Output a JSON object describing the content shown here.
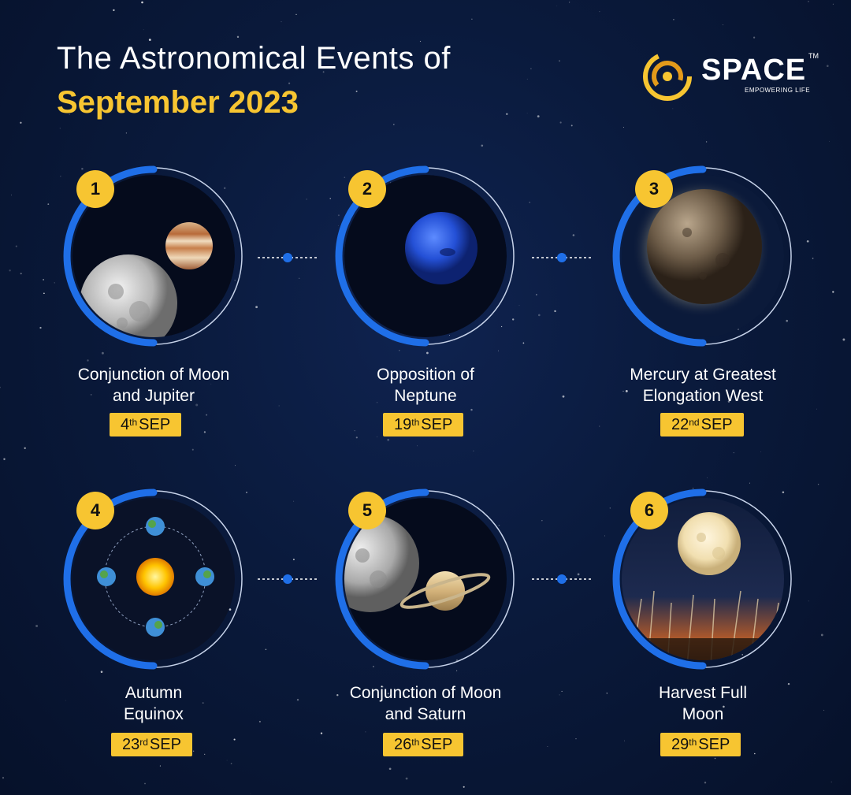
{
  "title": {
    "line1": "The Astronomical Events of",
    "line2": "September 2023"
  },
  "logo": {
    "name": "SPACE",
    "tm": "TM",
    "tagline": "EMPOWERING LIFE"
  },
  "colors": {
    "accent": "#f7c531",
    "ring": "#1f6fe8",
    "background": "#0a1a3c"
  },
  "events": [
    {
      "number": "1",
      "label1": "Conjunction of Moon",
      "label2": "and Jupiter",
      "day": "4",
      "suffix": "th",
      "month": "SEP",
      "icon": "moon-jupiter-icon"
    },
    {
      "number": "2",
      "label1": "Opposition of",
      "label2": "Neptune",
      "day": "19",
      "suffix": "th",
      "month": "SEP",
      "icon": "neptune-icon"
    },
    {
      "number": "3",
      "label1": "Mercury at Greatest",
      "label2": "Elongation West",
      "day": "22",
      "suffix": "nd",
      "month": "SEP",
      "icon": "mercury-icon"
    },
    {
      "number": "4",
      "label1": "Autumn",
      "label2": "Equinox",
      "day": "23",
      "suffix": "rd",
      "month": "SEP",
      "icon": "equinox-orbit-icon"
    },
    {
      "number": "5",
      "label1": "Conjunction of Moon",
      "label2": "and Saturn",
      "day": "26",
      "suffix": "th",
      "month": "SEP",
      "icon": "moon-saturn-icon"
    },
    {
      "number": "6",
      "label1": "Harvest Full",
      "label2": "Moon",
      "day": "29",
      "suffix": "th",
      "month": "SEP",
      "icon": "harvest-moon-icon"
    }
  ]
}
